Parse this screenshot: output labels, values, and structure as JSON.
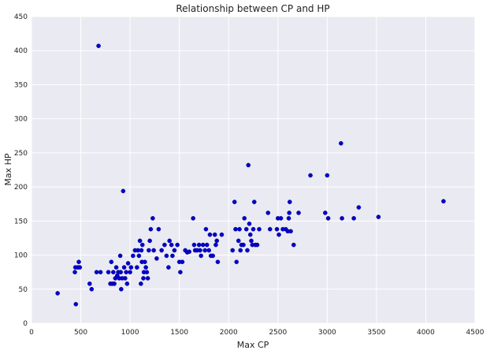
{
  "chart_data": {
    "type": "scatter",
    "title": "Relationship between CP and HP",
    "xlabel": "Max CP",
    "ylabel": "Max HP",
    "xlim": [
      0,
      4500
    ],
    "ylim": [
      0,
      450
    ],
    "xticks": [
      0,
      500,
      1000,
      1500,
      2000,
      2500,
      3000,
      3500,
      4000,
      4500
    ],
    "yticks": [
      0,
      50,
      100,
      150,
      200,
      250,
      300,
      350,
      400,
      450
    ],
    "grid": true,
    "colors": {
      "background": "#eaeaf2",
      "grid": "#ffffff",
      "point": "#0000cc"
    },
    "points": [
      [
        265,
        44
      ],
      [
        450,
        28
      ],
      [
        440,
        75
      ],
      [
        445,
        82
      ],
      [
        470,
        82
      ],
      [
        480,
        90
      ],
      [
        490,
        82
      ],
      [
        590,
        58
      ],
      [
        610,
        50
      ],
      [
        660,
        75
      ],
      [
        680,
        407
      ],
      [
        700,
        75
      ],
      [
        780,
        75
      ],
      [
        800,
        58
      ],
      [
        810,
        90
      ],
      [
        820,
        58
      ],
      [
        830,
        75
      ],
      [
        840,
        58
      ],
      [
        850,
        66
      ],
      [
        860,
        82
      ],
      [
        870,
        70
      ],
      [
        880,
        75
      ],
      [
        890,
        66
      ],
      [
        900,
        99
      ],
      [
        905,
        75
      ],
      [
        910,
        50
      ],
      [
        920,
        66
      ],
      [
        930,
        194
      ],
      [
        940,
        82
      ],
      [
        950,
        66
      ],
      [
        960,
        75
      ],
      [
        970,
        58
      ],
      [
        980,
        88
      ],
      [
        1000,
        75
      ],
      [
        1010,
        82
      ],
      [
        1030,
        99
      ],
      [
        1050,
        107
      ],
      [
        1070,
        82
      ],
      [
        1080,
        107
      ],
      [
        1090,
        99
      ],
      [
        1100,
        121
      ],
      [
        1110,
        58
      ],
      [
        1115,
        107
      ],
      [
        1120,
        90
      ],
      [
        1125,
        115
      ],
      [
        1135,
        66
      ],
      [
        1140,
        75
      ],
      [
        1150,
        90
      ],
      [
        1160,
        82
      ],
      [
        1170,
        75
      ],
      [
        1180,
        66
      ],
      [
        1190,
        107
      ],
      [
        1200,
        121
      ],
      [
        1210,
        138
      ],
      [
        1230,
        154
      ],
      [
        1240,
        107
      ],
      [
        1270,
        95
      ],
      [
        1290,
        138
      ],
      [
        1320,
        107
      ],
      [
        1350,
        115
      ],
      [
        1370,
        99
      ],
      [
        1390,
        82
      ],
      [
        1400,
        121
      ],
      [
        1420,
        115
      ],
      [
        1430,
        99
      ],
      [
        1450,
        107
      ],
      [
        1480,
        115
      ],
      [
        1500,
        90
      ],
      [
        1510,
        75
      ],
      [
        1530,
        90
      ],
      [
        1560,
        107
      ],
      [
        1580,
        104
      ],
      [
        1600,
        105
      ],
      [
        1640,
        154
      ],
      [
        1650,
        115
      ],
      [
        1660,
        107
      ],
      [
        1680,
        107
      ],
      [
        1700,
        115
      ],
      [
        1710,
        107
      ],
      [
        1720,
        99
      ],
      [
        1740,
        115
      ],
      [
        1760,
        107
      ],
      [
        1770,
        138
      ],
      [
        1780,
        115
      ],
      [
        1800,
        107
      ],
      [
        1810,
        130
      ],
      [
        1820,
        99
      ],
      [
        1840,
        99
      ],
      [
        1860,
        130
      ],
      [
        1870,
        115
      ],
      [
        1880,
        121
      ],
      [
        1890,
        90
      ],
      [
        1930,
        130
      ],
      [
        2040,
        107
      ],
      [
        2060,
        178
      ],
      [
        2070,
        138
      ],
      [
        2080,
        90
      ],
      [
        2100,
        121
      ],
      [
        2110,
        138
      ],
      [
        2120,
        107
      ],
      [
        2130,
        115
      ],
      [
        2150,
        115
      ],
      [
        2160,
        154
      ],
      [
        2180,
        138
      ],
      [
        2190,
        107
      ],
      [
        2200,
        232
      ],
      [
        2210,
        146
      ],
      [
        2220,
        130
      ],
      [
        2230,
        121
      ],
      [
        2240,
        115
      ],
      [
        2250,
        138
      ],
      [
        2260,
        178
      ],
      [
        2270,
        115
      ],
      [
        2290,
        115
      ],
      [
        2310,
        138
      ],
      [
        2400,
        162
      ],
      [
        2420,
        138
      ],
      [
        2490,
        138
      ],
      [
        2500,
        154
      ],
      [
        2510,
        130
      ],
      [
        2530,
        154
      ],
      [
        2550,
        138
      ],
      [
        2580,
        138
      ],
      [
        2600,
        135
      ],
      [
        2610,
        154
      ],
      [
        2615,
        162
      ],
      [
        2620,
        178
      ],
      [
        2630,
        135
      ],
      [
        2660,
        115
      ],
      [
        2710,
        162
      ],
      [
        2830,
        217
      ],
      [
        2980,
        162
      ],
      [
        3000,
        217
      ],
      [
        3010,
        154
      ],
      [
        3140,
        264
      ],
      [
        3150,
        154
      ],
      [
        3270,
        154
      ],
      [
        3320,
        170
      ],
      [
        3520,
        156
      ],
      [
        4180,
        179
      ]
    ]
  }
}
